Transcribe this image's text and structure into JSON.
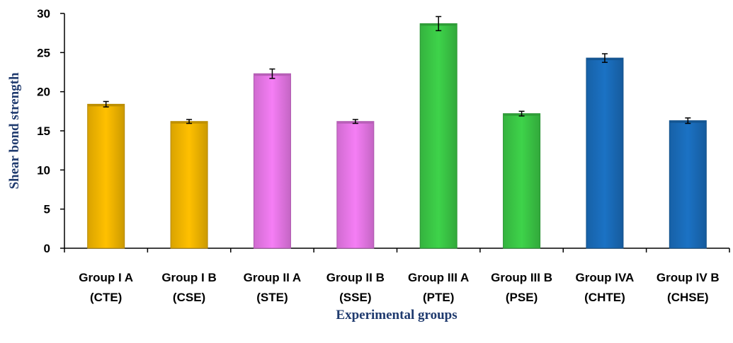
{
  "chart_data": {
    "type": "bar",
    "xlabel": "Experimental groups",
    "ylabel": "Shear bond strength",
    "ylim": [
      0,
      30
    ],
    "yticks": [
      0,
      5,
      10,
      15,
      20,
      25,
      30
    ],
    "grid": false,
    "categories": [
      [
        "Group I A",
        "(CTE)"
      ],
      [
        "Group I B",
        "(CSE)"
      ],
      [
        "Group II A",
        "(STE)"
      ],
      [
        "Group II B",
        "(SSE)"
      ],
      [
        "Group III A",
        "(PTE)"
      ],
      [
        "Group III B",
        "(PSE)"
      ],
      [
        "Group IVA",
        "(CHTE)"
      ],
      [
        "Group IV B",
        "(CHSE)"
      ]
    ],
    "values": [
      18.4,
      16.2,
      22.3,
      16.2,
      28.7,
      17.2,
      24.3,
      16.3
    ],
    "errors": [
      0.35,
      0.25,
      0.6,
      0.25,
      0.9,
      0.3,
      0.55,
      0.35
    ],
    "colors": [
      "#ffc000",
      "#ffc000",
      "#f57ef5",
      "#f57ef5",
      "#3ed34a",
      "#3ed34a",
      "#1b72c4",
      "#1b72c4"
    ]
  }
}
